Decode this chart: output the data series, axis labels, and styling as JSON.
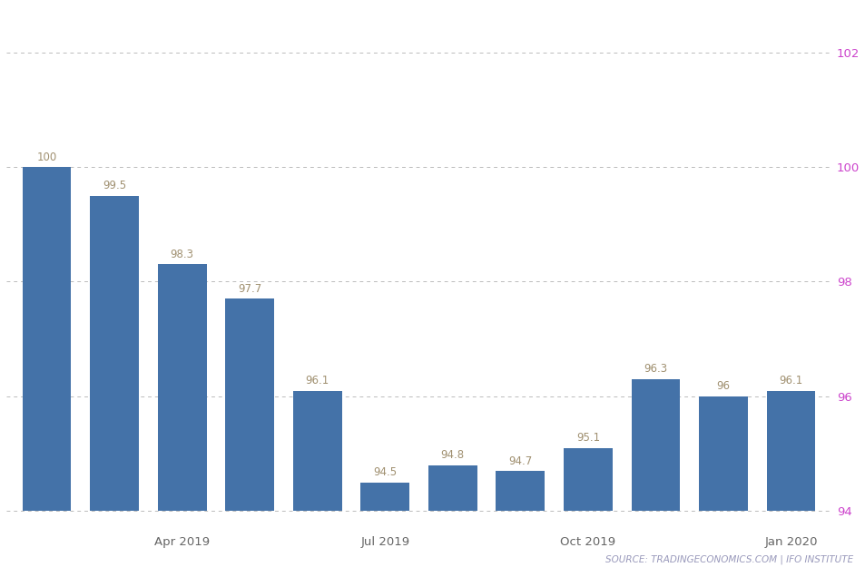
{
  "x_tick_labels": [
    "Apr 2019",
    "Jul 2019",
    "Oct 2019",
    "Jan 2020"
  ],
  "x_tick_positions": [
    2,
    5,
    8,
    11
  ],
  "values": [
    100,
    99.5,
    98.3,
    97.7,
    96.1,
    94.5,
    94.8,
    94.7,
    95.1,
    96.3,
    96,
    96.1
  ],
  "bar_color": "#4472a8",
  "label_color": "#a09070",
  "bar_bottom": 94,
  "ylim_bottom": 93.7,
  "ylim_top": 102.8,
  "yticks": [
    94,
    96,
    98,
    100,
    102
  ],
  "grid_color": "#bbbbbb",
  "background_color": "#ffffff",
  "source_text": "SOURCE: TRADINGECONOMICS.COM | IFO INSTITUTE",
  "source_color": "#9999bb",
  "label_fontsize": 8.5,
  "tick_fontsize": 9.5,
  "source_fontsize": 7.5,
  "ytick_color": "#cc44cc"
}
